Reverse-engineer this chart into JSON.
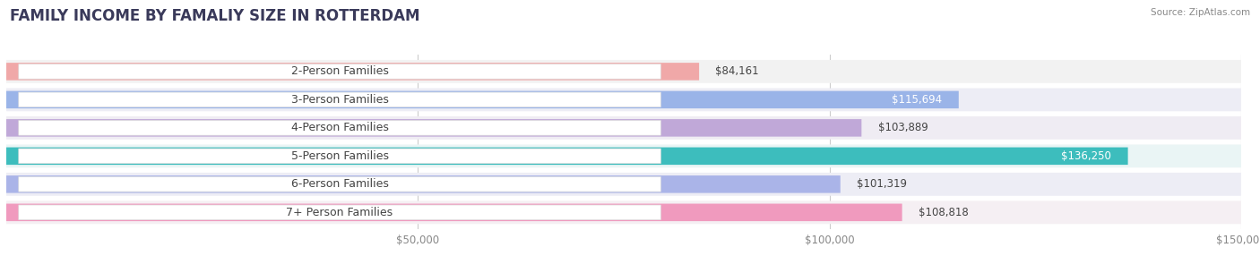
{
  "title": "FAMILY INCOME BY FAMALIY SIZE IN ROTTERDAM",
  "source": "Source: ZipAtlas.com",
  "categories": [
    "2-Person Families",
    "3-Person Families",
    "4-Person Families",
    "5-Person Families",
    "6-Person Families",
    "7+ Person Families"
  ],
  "values": [
    84161,
    115694,
    103889,
    136250,
    101319,
    108818
  ],
  "labels": [
    "$84,161",
    "$115,694",
    "$103,889",
    "$136,250",
    "$101,319",
    "$108,818"
  ],
  "bar_colors": [
    "#f0a8a8",
    "#9ab4e8",
    "#c0a8d8",
    "#3dbdbd",
    "#aab4e8",
    "#f09abe"
  ],
  "bar_row_bg": [
    "#f2f2f2",
    "#ededf5",
    "#efecf3",
    "#eaf5f5",
    "#ededf5",
    "#f5eff3"
  ],
  "xmax": 150000,
  "xlabel_ticks": [
    0,
    50000,
    100000,
    150000
  ],
  "xlabel_labels": [
    "$50,000",
    "$100,000",
    "$150,000"
  ],
  "background_color": "#ffffff",
  "title_fontsize": 12,
  "label_fontsize": 8.5,
  "tick_fontsize": 8.5,
  "label_inside": [
    false,
    true,
    false,
    true,
    false,
    false
  ],
  "label_text_color_inside": "#ffffff",
  "label_text_color_outside": "#444444",
  "cat_label_fontsize": 9,
  "cat_label_color": "#444444"
}
